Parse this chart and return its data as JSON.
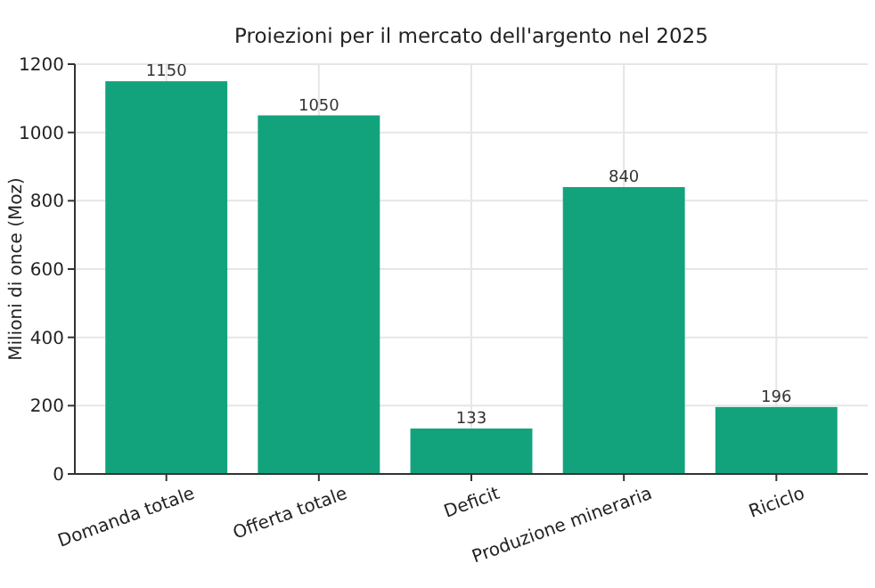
{
  "chart_data": {
    "type": "bar",
    "title": "Proiezioni per il mercato dell'argento nel 2025",
    "ylabel": "Milioni di once (Moz)",
    "categories": [
      "Domanda totale",
      "Offerta totale",
      "Deficit",
      "Produzione mineraria",
      "Riciclo"
    ],
    "values": [
      1150,
      1050,
      133,
      840,
      196
    ],
    "color": "#13a37c",
    "ylim": [
      0,
      1200
    ],
    "yticks": [
      0,
      200,
      400,
      600,
      800,
      1000,
      1200
    ],
    "grid": true,
    "data_labels": true
  }
}
